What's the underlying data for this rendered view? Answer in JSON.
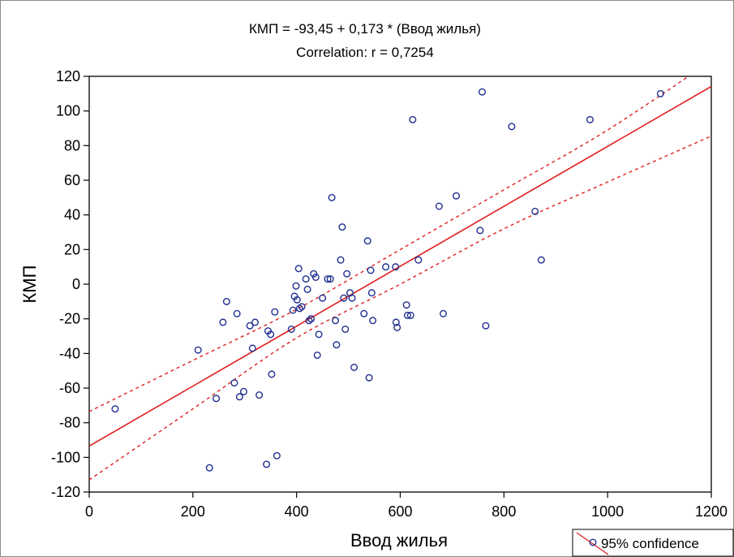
{
  "chart_data": {
    "type": "scatter",
    "title": "КМП = -93,45 + 0,173 * (Ввод жилья)",
    "subtitle": "Correlation: r = 0,7254",
    "xlabel": "Ввод жилья",
    "ylabel": "КМП",
    "xlim": [
      0,
      1200
    ],
    "ylim": [
      -120,
      120
    ],
    "x_ticks": [
      0,
      200,
      400,
      600,
      800,
      1000,
      1200
    ],
    "y_ticks": [
      -120,
      -100,
      -80,
      -60,
      -40,
      -20,
      0,
      20,
      40,
      60,
      80,
      100,
      120
    ],
    "grid": false,
    "legend": {
      "position": "bottom-right",
      "label": "95% confidence"
    },
    "regression": {
      "intercept": -93.45,
      "slope": 0.173
    },
    "confidence_band": {
      "upper": [
        [
          0,
          -73.5
        ],
        [
          200,
          -44.0
        ],
        [
          400,
          -14.5
        ],
        [
          600,
          20.0
        ],
        [
          800,
          54.5
        ],
        [
          1000,
          89.0
        ],
        [
          1200,
          129.0
        ]
      ],
      "lower": [
        [
          0,
          -113.0
        ],
        [
          200,
          -72.0
        ],
        [
          400,
          -31.0
        ],
        [
          600,
          0.0
        ],
        [
          800,
          32.0
        ],
        [
          1000,
          59.0
        ],
        [
          1200,
          85.5
        ]
      ]
    },
    "colors": {
      "points": "#1f2f8f",
      "fit": "#e01e1e",
      "band": "#e01e1e"
    },
    "points": [
      [
        50,
        -72
      ],
      [
        210,
        -38
      ],
      [
        232,
        -106
      ],
      [
        245,
        -66
      ],
      [
        258,
        -22
      ],
      [
        265,
        -10
      ],
      [
        280,
        -57
      ],
      [
        285,
        -17
      ],
      [
        290,
        -65
      ],
      [
        298,
        -62
      ],
      [
        310,
        -24
      ],
      [
        315,
        -37
      ],
      [
        320,
        -22
      ],
      [
        328,
        -64
      ],
      [
        342,
        -104
      ],
      [
        345,
        -27
      ],
      [
        350,
        -29
      ],
      [
        352,
        -52
      ],
      [
        358,
        -16
      ],
      [
        362,
        -99
      ],
      [
        390,
        -26
      ],
      [
        393,
        -15
      ],
      [
        396,
        -7
      ],
      [
        399,
        -1
      ],
      [
        401,
        -9
      ],
      [
        404,
        9
      ],
      [
        406,
        -14
      ],
      [
        410,
        -13
      ],
      [
        418,
        3
      ],
      [
        421,
        -3
      ],
      [
        424,
        -21
      ],
      [
        428,
        -20
      ],
      [
        433,
        6
      ],
      [
        437,
        4
      ],
      [
        440,
        -41
      ],
      [
        443,
        -29
      ],
      [
        450,
        -8
      ],
      [
        460,
        3
      ],
      [
        465,
        3
      ],
      [
        468,
        50
      ],
      [
        475,
        -21
      ],
      [
        477,
        -35
      ],
      [
        485,
        14
      ],
      [
        488,
        33
      ],
      [
        491,
        -8
      ],
      [
        494,
        -26
      ],
      [
        497,
        6
      ],
      [
        503,
        -5
      ],
      [
        507,
        -8
      ],
      [
        511,
        -48
      ],
      [
        530,
        -17
      ],
      [
        537,
        25
      ],
      [
        540,
        -54
      ],
      [
        543,
        8
      ],
      [
        545,
        -5
      ],
      [
        547,
        -21
      ],
      [
        572,
        10
      ],
      [
        591,
        10
      ],
      [
        592,
        -22
      ],
      [
        594,
        -25
      ],
      [
        612,
        -12
      ],
      [
        614,
        -18
      ],
      [
        620,
        -18
      ],
      [
        624,
        95
      ],
      [
        635,
        14
      ],
      [
        675,
        45
      ],
      [
        683,
        -17
      ],
      [
        708,
        51
      ],
      [
        754,
        31
      ],
      [
        758,
        111
      ],
      [
        765,
        -24
      ],
      [
        815,
        91
      ],
      [
        860,
        42
      ],
      [
        872,
        14
      ],
      [
        966,
        95
      ],
      [
        1102,
        110
      ]
    ]
  }
}
